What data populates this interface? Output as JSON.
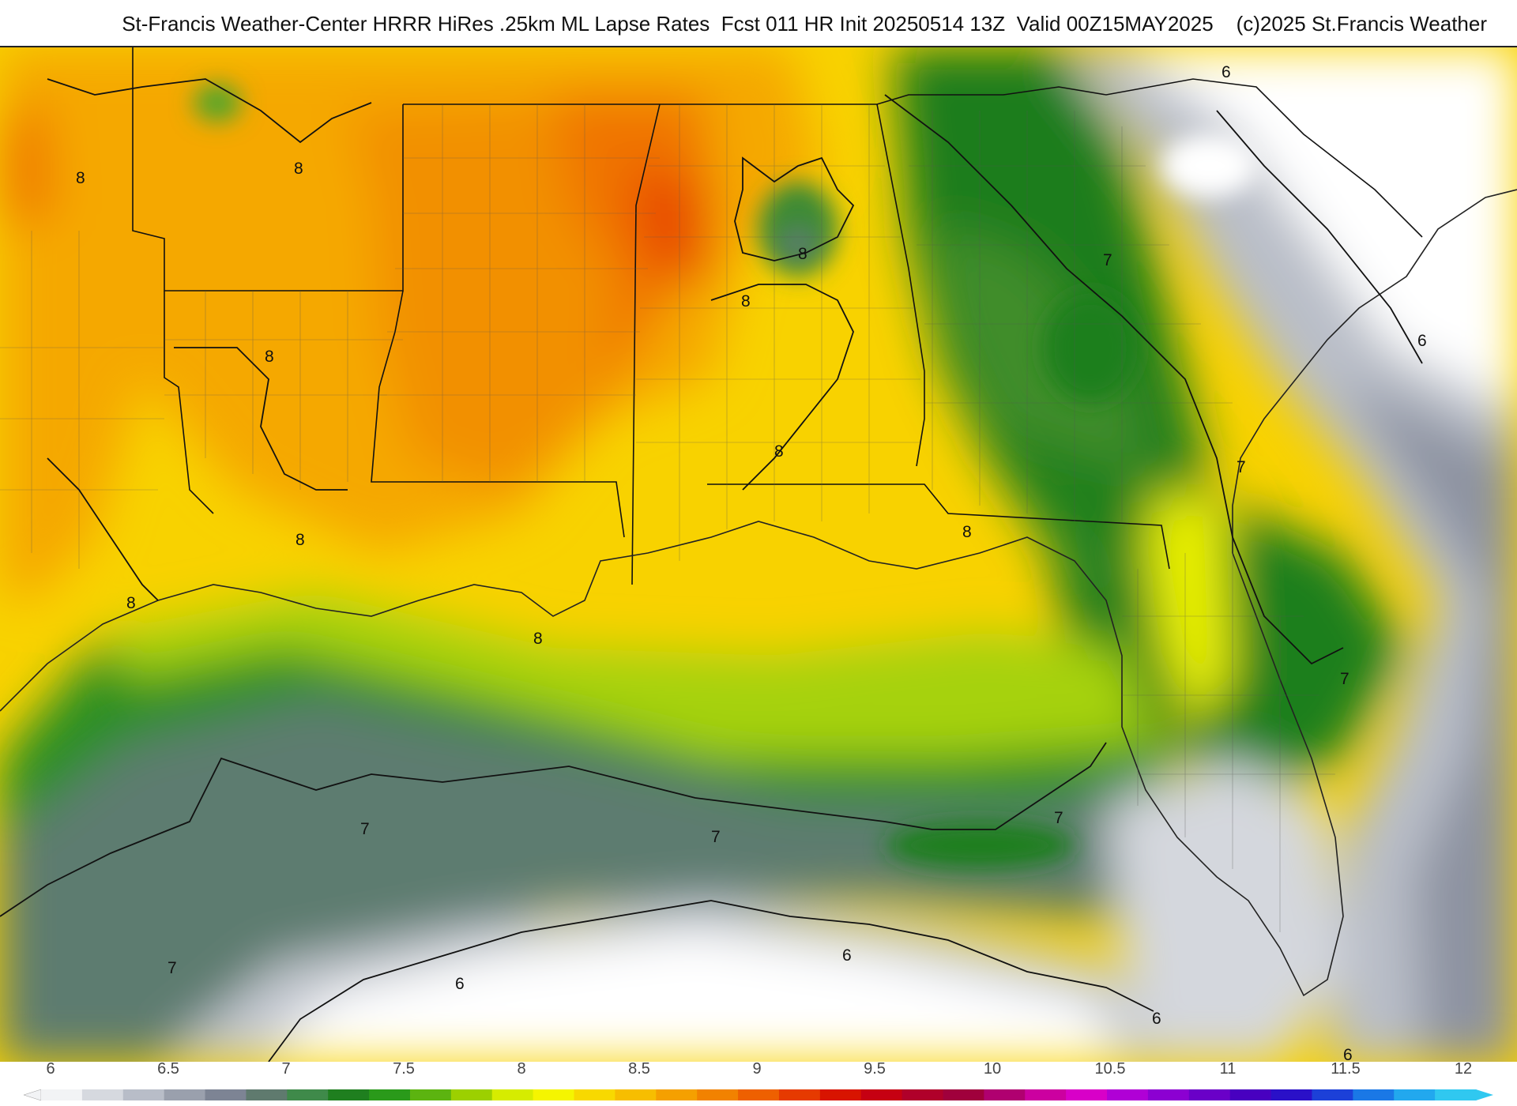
{
  "header": {
    "title": "St-Francis Weather-Center HRRR HiRes .25km ML Lapse Rates  Fcst 011 HR Init 20250514 13Z  Valid 00Z15MAY2025    (c)2025 St.Francis Weather"
  },
  "colorbar": {
    "labels": [
      "6",
      "6.5",
      "7",
      "7.5",
      "8",
      "8.5",
      "9",
      "9.5",
      "10",
      "10.5",
      "11",
      "11.5",
      "12"
    ],
    "colors": [
      "#f2f3f5",
      "#d6d9df",
      "#b8bdc8",
      "#9aa0ad",
      "#7d8494",
      "#5f7a6e",
      "#3f8a4a",
      "#1f7f1f",
      "#2a9a1a",
      "#5cb410",
      "#9cd000",
      "#d6ec00",
      "#f5f500",
      "#f8d900",
      "#f7be00",
      "#f5a000",
      "#f28200",
      "#ee6000",
      "#e63a00",
      "#d81400",
      "#c60012",
      "#b0002a",
      "#a0003c",
      "#b00070",
      "#cc00a0",
      "#d800c8",
      "#b000d6",
      "#8c00d2",
      "#6a00c8",
      "#4800c0",
      "#2a10c8",
      "#1c40d8",
      "#1a78e6",
      "#22a8ee",
      "#30c8f0"
    ]
  },
  "map": {
    "contour_labels": [
      "8",
      "8",
      "8",
      "8",
      "8",
      "8",
      "8",
      "8",
      "8",
      "8",
      "7",
      "7",
      "7",
      "7",
      "7",
      "7",
      "7",
      "6",
      "6",
      "6",
      "6",
      "6",
      "6"
    ]
  }
}
